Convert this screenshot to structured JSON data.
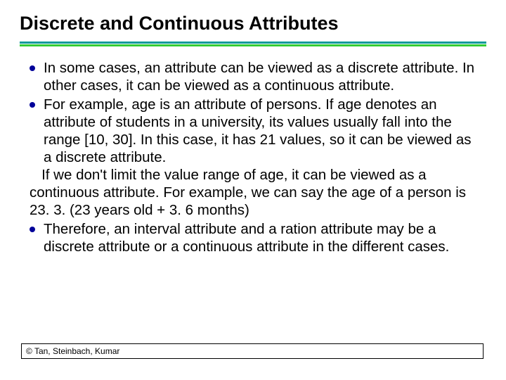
{
  "title": "Discrete and Continuous Attributes",
  "rule": {
    "top_color": "#009999",
    "bottom_color": "#33cc33"
  },
  "bullet_color": "#000099",
  "fonts": {
    "title_size": 27,
    "body_size": 20.5,
    "footer_size": 12
  },
  "bullets": {
    "b1": "In some cases, an attribute can be viewed as a discrete attribute. In other cases, it can be viewed as a continuous attribute.",
    "b2": "For example, age is an attribute of persons. If age denotes an attribute of students in a university, its values usually fall into the range [10, 30]. In this case, it has 21 values, so it can be viewed as a discrete attribute.",
    "cont": "   If we don't limit the value range of age, it can be viewed as a continuous attribute. For example, we can say the age of a person is 23. 3. (23 years old + 3. 6 months)",
    "b3": "Therefore, an interval attribute and a ration attribute may be a discrete attribute or a continuous attribute in the different cases."
  },
  "footer": "© Tan, Steinbach, Kumar"
}
